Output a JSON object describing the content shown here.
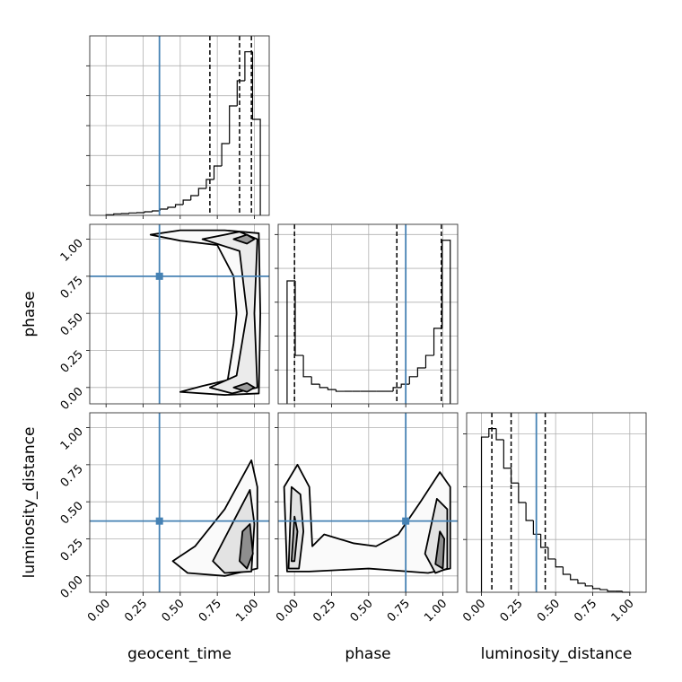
{
  "chart_data": [
    {
      "type": "histogram",
      "bins": [
        0,
        0.052,
        0.104,
        0.156,
        0.208,
        0.26,
        0.312,
        0.364,
        0.416,
        0.468,
        0.52,
        0.572,
        0.624,
        0.676,
        0.728,
        0.78,
        0.832,
        0.884,
        0.936,
        0.988,
        1.04
      ],
      "values": [
        0.02,
        0.05,
        0.06,
        0.08,
        0.09,
        0.12,
        0.15,
        0.21,
        0.27,
        0.36,
        0.51,
        0.66,
        0.9,
        1.2,
        1.65,
        2.4,
        3.66,
        4.5,
        5.47,
        3.21
      ],
      "xlim": [
        -0.11,
        1.1
      ],
      "xticks": [
        0,
        0.25,
        0.5,
        0.75,
        1
      ],
      "ylim": [
        0,
        6
      ],
      "yticks": [
        1,
        2,
        3,
        4,
        5
      ],
      "quantiles": [
        0.7,
        0.9,
        0.98
      ],
      "truth": 0.36,
      "color": "#000000",
      "truth_color": "#4682b4",
      "grid": true
    },
    {
      "type": "contour",
      "xlim": [
        -0.11,
        1.1
      ],
      "xticks": [
        0,
        0.25,
        0.5,
        0.75,
        1
      ],
      "ylim": [
        -0.11,
        1.1
      ],
      "yticks": [
        {
          "value": 0,
          "label": "0.00"
        },
        {
          "value": 0.25,
          "label": "0.25"
        },
        {
          "value": 0.5,
          "label": "0.50"
        },
        {
          "value": 0.75,
          "label": "0.75"
        },
        {
          "value": 1,
          "label": "1.00"
        }
      ],
      "ylabel": "phase",
      "contours": [
        {
          "x": [
            0.3,
            0.5,
            0.8,
            1.03,
            1.04,
            1.03,
            0.8,
            0.5,
            0.65,
            0.82,
            0.86,
            0.88,
            0.86,
            0.75,
            0.5,
            0.3
          ],
          "y": [
            1.03,
            1.06,
            1.06,
            1.04,
            0.5,
            -0.04,
            -0.05,
            -0.03,
            0.01,
            0.05,
            0.3,
            0.5,
            0.75,
            0.96,
            0.99,
            1.03
          ],
          "fill": "#fafafa"
        },
        {
          "x": [
            0.65,
            0.9,
            1.02,
            1.0,
            1.02,
            0.85,
            0.7,
            0.88,
            0.95,
            0.9,
            0.65
          ],
          "y": [
            1.0,
            1.05,
            1.0,
            0.5,
            0.0,
            -0.04,
            0.0,
            0.08,
            0.5,
            0.92,
            1.0
          ],
          "fill": "#ebebeb"
        },
        {
          "x": [
            0.86,
            0.95,
            1.0,
            0.95,
            0.86
          ],
          "y": [
            1.0,
            1.03,
            1.0,
            0.97,
            1.0
          ],
          "fill": "#9a9a9a"
        },
        {
          "x": [
            0.86,
            0.95,
            1.0,
            0.95,
            0.86
          ],
          "y": [
            0.0,
            0.03,
            0.0,
            -0.03,
            0.0
          ],
          "fill": "#9a9a9a"
        }
      ],
      "truth": {
        "x": 0.36,
        "y": 0.75
      },
      "truth_color": "#4682b4",
      "grid": true
    },
    {
      "type": "histogram",
      "bins": [
        -0.05,
        0.005,
        0.06,
        0.115,
        0.17,
        0.225,
        0.28,
        0.335,
        0.39,
        0.445,
        0.5,
        0.555,
        0.61,
        0.665,
        0.72,
        0.775,
        0.83,
        0.885,
        0.94,
        0.995,
        1.05
      ],
      "values": [
        3.63,
        1.43,
        0.8,
        0.58,
        0.48,
        0.42,
        0.37,
        0.37,
        0.37,
        0.37,
        0.37,
        0.37,
        0.37,
        0.48,
        0.58,
        0.8,
        1.06,
        1.43,
        2.23,
        4.83
      ],
      "xlim": [
        -0.11,
        1.1
      ],
      "xticks": [
        0,
        0.25,
        0.5,
        0.75,
        1
      ],
      "ylim": [
        0,
        5.3
      ],
      "yticks": [
        1,
        2,
        3,
        4,
        5
      ],
      "quantiles": [
        0.0,
        0.69,
        0.99
      ],
      "truth": 0.75,
      "color": "#000000",
      "truth_color": "#4682b4",
      "grid": true
    },
    {
      "type": "contour",
      "xlim": [
        -0.11,
        1.1
      ],
      "xticks": [
        {
          "value": 0,
          "label": "0.00"
        },
        {
          "value": 0.25,
          "label": "0.25"
        },
        {
          "value": 0.5,
          "label": "0.50"
        },
        {
          "value": 0.75,
          "label": "0.75"
        },
        {
          "value": 1,
          "label": "1.00"
        }
      ],
      "ylim": [
        -0.11,
        1.1
      ],
      "yticks": [
        {
          "value": 0,
          "label": "0.00"
        },
        {
          "value": 0.25,
          "label": "0.25"
        },
        {
          "value": 0.5,
          "label": "0.50"
        },
        {
          "value": 0.75,
          "label": "0.75"
        },
        {
          "value": 1,
          "label": "1.00"
        }
      ],
      "xlabel": "geocent_time",
      "ylabel": "luminosity_distance",
      "contours": [
        {
          "x": [
            0.45,
            0.6,
            0.8,
            0.98,
            1.02,
            1.02,
            0.8,
            0.55,
            0.45
          ],
          "y": [
            0.1,
            0.2,
            0.45,
            0.78,
            0.6,
            0.05,
            0.0,
            0.02,
            0.1
          ],
          "fill": "#fafafa"
        },
        {
          "x": [
            0.72,
            0.85,
            0.97,
            1.0,
            0.98,
            0.8,
            0.72
          ],
          "y": [
            0.1,
            0.35,
            0.58,
            0.35,
            0.03,
            0.02,
            0.1
          ],
          "fill": "#e3e3e3"
        },
        {
          "x": [
            0.9,
            0.92,
            0.97,
            0.99,
            0.95,
            0.9
          ],
          "y": [
            0.1,
            0.3,
            0.35,
            0.15,
            0.05,
            0.1
          ],
          "fill": "#8e8e8e"
        }
      ],
      "truth": {
        "x": 0.36,
        "y": 0.37
      },
      "truth_color": "#4682b4",
      "grid": true
    },
    {
      "type": "contour",
      "xlim": [
        -0.11,
        1.1
      ],
      "xticks": [
        {
          "value": 0,
          "label": "0.00"
        },
        {
          "value": 0.25,
          "label": "0.25"
        },
        {
          "value": 0.5,
          "label": "0.50"
        },
        {
          "value": 0.75,
          "label": "0.75"
        },
        {
          "value": 1,
          "label": "1.00"
        }
      ],
      "ylim": [
        -0.11,
        1.1
      ],
      "yticks": [
        0,
        0.25,
        0.5,
        0.75,
        1
      ],
      "xlabel": "phase",
      "contours": [
        {
          "x": [
            -0.07,
            0.02,
            0.1,
            0.12,
            0.2,
            0.4,
            0.55,
            0.7,
            0.85,
            0.98,
            1.05,
            1.05,
            0.9,
            0.5,
            0.1,
            -0.05,
            -0.07
          ],
          "y": [
            0.6,
            0.75,
            0.6,
            0.2,
            0.28,
            0.22,
            0.2,
            0.28,
            0.5,
            0.7,
            0.6,
            0.05,
            0.02,
            0.05,
            0.03,
            0.03,
            0.6
          ],
          "fill": "#fafafa"
        },
        {
          "x": [
            -0.04,
            -0.02,
            0.04,
            0.06,
            0.03,
            -0.04
          ],
          "y": [
            0.05,
            0.6,
            0.55,
            0.3,
            0.05,
            0.05
          ],
          "fill": "#e3e3e3"
        },
        {
          "x": [
            0.88,
            0.96,
            1.03,
            1.03,
            0.95,
            0.88
          ],
          "y": [
            0.15,
            0.52,
            0.45,
            0.05,
            0.02,
            0.15
          ],
          "fill": "#e3e3e3"
        },
        {
          "x": [
            -0.02,
            0.0,
            0.02,
            0.0,
            -0.02
          ],
          "y": [
            0.1,
            0.4,
            0.3,
            0.1,
            0.1
          ],
          "fill": "#bdbdbd"
        },
        {
          "x": [
            0.95,
            0.98,
            1.01,
            1.0,
            0.95
          ],
          "y": [
            0.08,
            0.3,
            0.25,
            0.05,
            0.08
          ],
          "fill": "#8e8e8e"
        }
      ],
      "truth": {
        "x": 0.75,
        "y": 0.37
      },
      "truth_color": "#4682b4",
      "grid": true
    },
    {
      "type": "histogram",
      "bins": [
        0,
        0.05,
        0.1,
        0.15,
        0.2,
        0.25,
        0.3,
        0.35,
        0.4,
        0.45,
        0.5,
        0.55,
        0.6,
        0.65,
        0.7,
        0.75,
        0.8,
        0.85,
        0.9,
        0.95,
        1.0
      ],
      "values": [
        2.94,
        3.1,
        2.89,
        2.35,
        2.07,
        1.7,
        1.36,
        1.1,
        0.85,
        0.63,
        0.48,
        0.34,
        0.24,
        0.17,
        0.12,
        0.07,
        0.05,
        0.02,
        0.02,
        0
      ],
      "xlim": [
        -0.1,
        1.11
      ],
      "xticks": [
        {
          "value": 0,
          "label": "0.00"
        },
        {
          "value": 0.25,
          "label": "0.25"
        },
        {
          "value": 0.5,
          "label": "0.50"
        },
        {
          "value": 0.75,
          "label": "0.75"
        },
        {
          "value": 1,
          "label": "1.00"
        }
      ],
      "ylim": [
        0,
        3.4
      ],
      "yticks": [
        1,
        2,
        3
      ],
      "xlabel": "luminosity_distance",
      "quantiles": [
        0.07,
        0.2,
        0.43
      ],
      "truth": 0.37,
      "color": "#000000",
      "truth_color": "#4682b4",
      "grid": true
    }
  ]
}
